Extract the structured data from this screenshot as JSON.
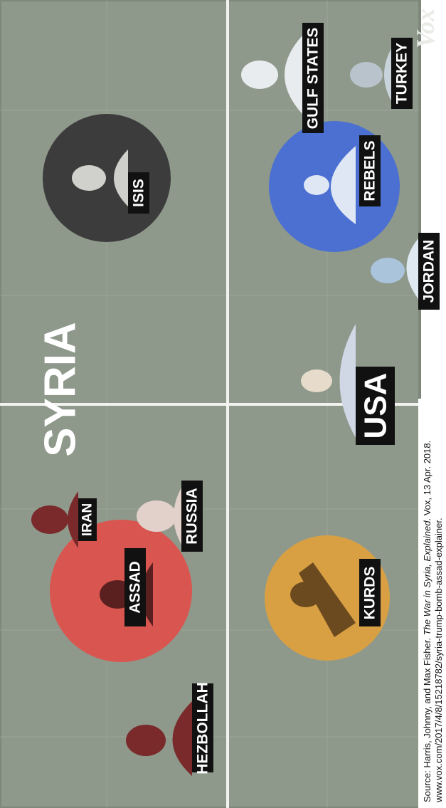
{
  "image": {
    "title": "SYRIA",
    "logo": "Vox",
    "actors": [
      "HEZBOLLAH",
      "ASSAD",
      "IRAN",
      "RUSSIA",
      "KURDS",
      "USA",
      "ISIS",
      "REBELS",
      "JORDAN",
      "GULF STATES",
      "TURKEY"
    ]
  },
  "caption": {
    "prefix": "Source: Harris, Johnny, and Max Fisher. ",
    "work": "The War in Syria, Explained",
    "suffix": ". Vox, 13 Apr. 2018.",
    "url": "www.vox.com/2017/4/8/15218782/syria-trump-bomb-assad-explainer."
  }
}
